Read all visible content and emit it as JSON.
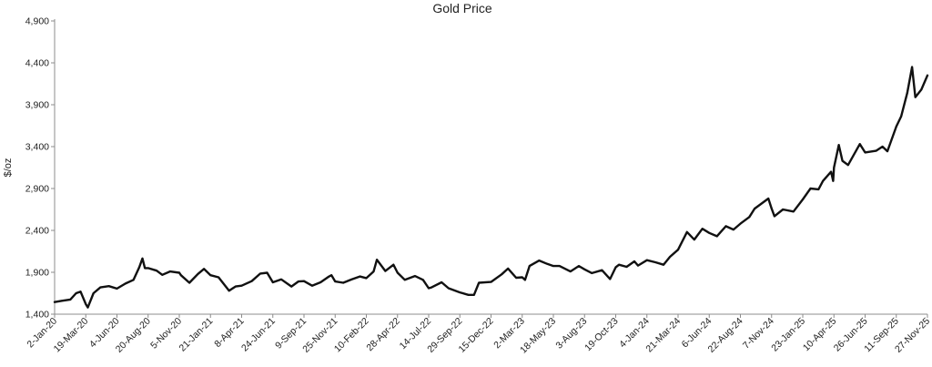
{
  "chart_data": {
    "type": "line",
    "title": "Gold Price",
    "xlabel": "",
    "ylabel": "$/oz",
    "ylim": [
      1400,
      4900
    ],
    "yticks": [
      "1,400",
      "1,900",
      "2,400",
      "2,900",
      "3,400",
      "3,900",
      "4,400",
      "4,900"
    ],
    "ytick_values": [
      1400,
      1900,
      2400,
      2900,
      3400,
      3900,
      4400,
      4900
    ],
    "xlim": [
      "2020-01-02",
      "2025-11-27"
    ],
    "xticks": [
      "2-Jan-20",
      "19-Mar-20",
      "4-Jun-20",
      "20-Aug-20",
      "5-Nov-20",
      "21-Jan-21",
      "8-Apr-21",
      "24-Jun-21",
      "9-Sep-21",
      "25-Nov-21",
      "10-Feb-22",
      "28-Apr-22",
      "14-Jul-22",
      "29-Sep-22",
      "15-Dec-22",
      "2-Mar-23",
      "18-May-23",
      "3-Aug-23",
      "19-Oct-23",
      "4-Jan-24",
      "21-Mar-24",
      "6-Jun-24",
      "22-Aug-24",
      "7-Nov-24",
      "23-Jan-25",
      "10-Apr-25",
      "26-Jun-25",
      "11-Sep-25",
      "27-Nov-25"
    ],
    "grid": false,
    "legend": "none",
    "line_color": "#111111",
    "series": [
      {
        "x": [
          "2020-01-02",
          "2020-01-20",
          "2020-02-10",
          "2020-02-24",
          "2020-03-06",
          "2020-03-19",
          "2020-03-24",
          "2020-04-07",
          "2020-04-24",
          "2020-05-15",
          "2020-06-04",
          "2020-06-25",
          "2020-07-15",
          "2020-07-29",
          "2020-08-06",
          "2020-08-12",
          "2020-08-20",
          "2020-09-10",
          "2020-09-24",
          "2020-10-13",
          "2020-11-05",
          "2020-11-09",
          "2020-11-30",
          "2020-12-21",
          "2021-01-05",
          "2021-01-21",
          "2021-02-10",
          "2021-03-08",
          "2021-03-24",
          "2021-04-08",
          "2021-05-03",
          "2021-05-24",
          "2021-06-10",
          "2021-06-24",
          "2021-07-15",
          "2021-08-09",
          "2021-08-26",
          "2021-09-09",
          "2021-09-29",
          "2021-10-20",
          "2021-11-08",
          "2021-11-16",
          "2021-11-25",
          "2021-12-15",
          "2022-01-05",
          "2022-01-25",
          "2022-02-10",
          "2022-02-28",
          "2022-03-08",
          "2022-03-29",
          "2022-04-18",
          "2022-04-28",
          "2022-05-16",
          "2022-06-10",
          "2022-06-30",
          "2022-07-14",
          "2022-07-21",
          "2022-08-15",
          "2022-09-01",
          "2022-09-29",
          "2022-10-20",
          "2022-11-03",
          "2022-11-15",
          "2022-12-15",
          "2023-01-10",
          "2023-01-26",
          "2023-02-15",
          "2023-03-02",
          "2023-03-09",
          "2023-03-20",
          "2023-04-13",
          "2023-05-03",
          "2023-05-18",
          "2023-06-02",
          "2023-06-29",
          "2023-07-20",
          "2023-08-03",
          "2023-08-21",
          "2023-09-15",
          "2023-10-05",
          "2023-10-19",
          "2023-10-27",
          "2023-11-15",
          "2023-12-04",
          "2023-12-13",
          "2024-01-04",
          "2024-01-25",
          "2024-02-14",
          "2024-03-01",
          "2024-03-21",
          "2024-04-12",
          "2024-04-30",
          "2024-05-20",
          "2024-06-06",
          "2024-06-25",
          "2024-07-17",
          "2024-08-05",
          "2024-08-22",
          "2024-09-13",
          "2024-09-26",
          "2024-10-30",
          "2024-11-07",
          "2024-11-14",
          "2024-12-05",
          "2024-12-31",
          "2025-01-23",
          "2025-02-11",
          "2025-03-03",
          "2025-03-14",
          "2025-04-03",
          "2025-04-08",
          "2025-04-10",
          "2025-04-22",
          "2025-05-01",
          "2025-05-15",
          "2025-06-13",
          "2025-06-26",
          "2025-07-23",
          "2025-08-08",
          "2025-08-20",
          "2025-09-11",
          "2025-09-23",
          "2025-10-08",
          "2025-10-20",
          "2025-10-28",
          "2025-11-12",
          "2025-11-27"
        ],
        "values": [
          1545,
          1560,
          1575,
          1650,
          1670,
          1520,
          1480,
          1650,
          1720,
          1735,
          1705,
          1765,
          1810,
          1960,
          2065,
          1950,
          1950,
          1920,
          1870,
          1910,
          1895,
          1865,
          1775,
          1880,
          1940,
          1865,
          1840,
          1680,
          1730,
          1740,
          1795,
          1885,
          1895,
          1780,
          1815,
          1730,
          1790,
          1795,
          1740,
          1780,
          1845,
          1865,
          1790,
          1775,
          1815,
          1850,
          1830,
          1910,
          2050,
          1915,
          1990,
          1895,
          1810,
          1855,
          1810,
          1710,
          1720,
          1780,
          1710,
          1660,
          1630,
          1630,
          1775,
          1785,
          1875,
          1945,
          1835,
          1840,
          1810,
          1975,
          2040,
          2000,
          1975,
          1975,
          1910,
          1975,
          1935,
          1890,
          1925,
          1820,
          1960,
          1990,
          1965,
          2030,
          1980,
          2045,
          2020,
          1990,
          2085,
          2170,
          2380,
          2290,
          2420,
          2370,
          2330,
          2450,
          2410,
          2480,
          2560,
          2660,
          2780,
          2660,
          2570,
          2650,
          2625,
          2770,
          2900,
          2890,
          2990,
          3100,
          2990,
          3150,
          3420,
          3230,
          3180,
          3430,
          3330,
          3350,
          3400,
          3345,
          3640,
          3760,
          4040,
          4350,
          3990,
          4080,
          4250
        ]
      }
    ]
  }
}
